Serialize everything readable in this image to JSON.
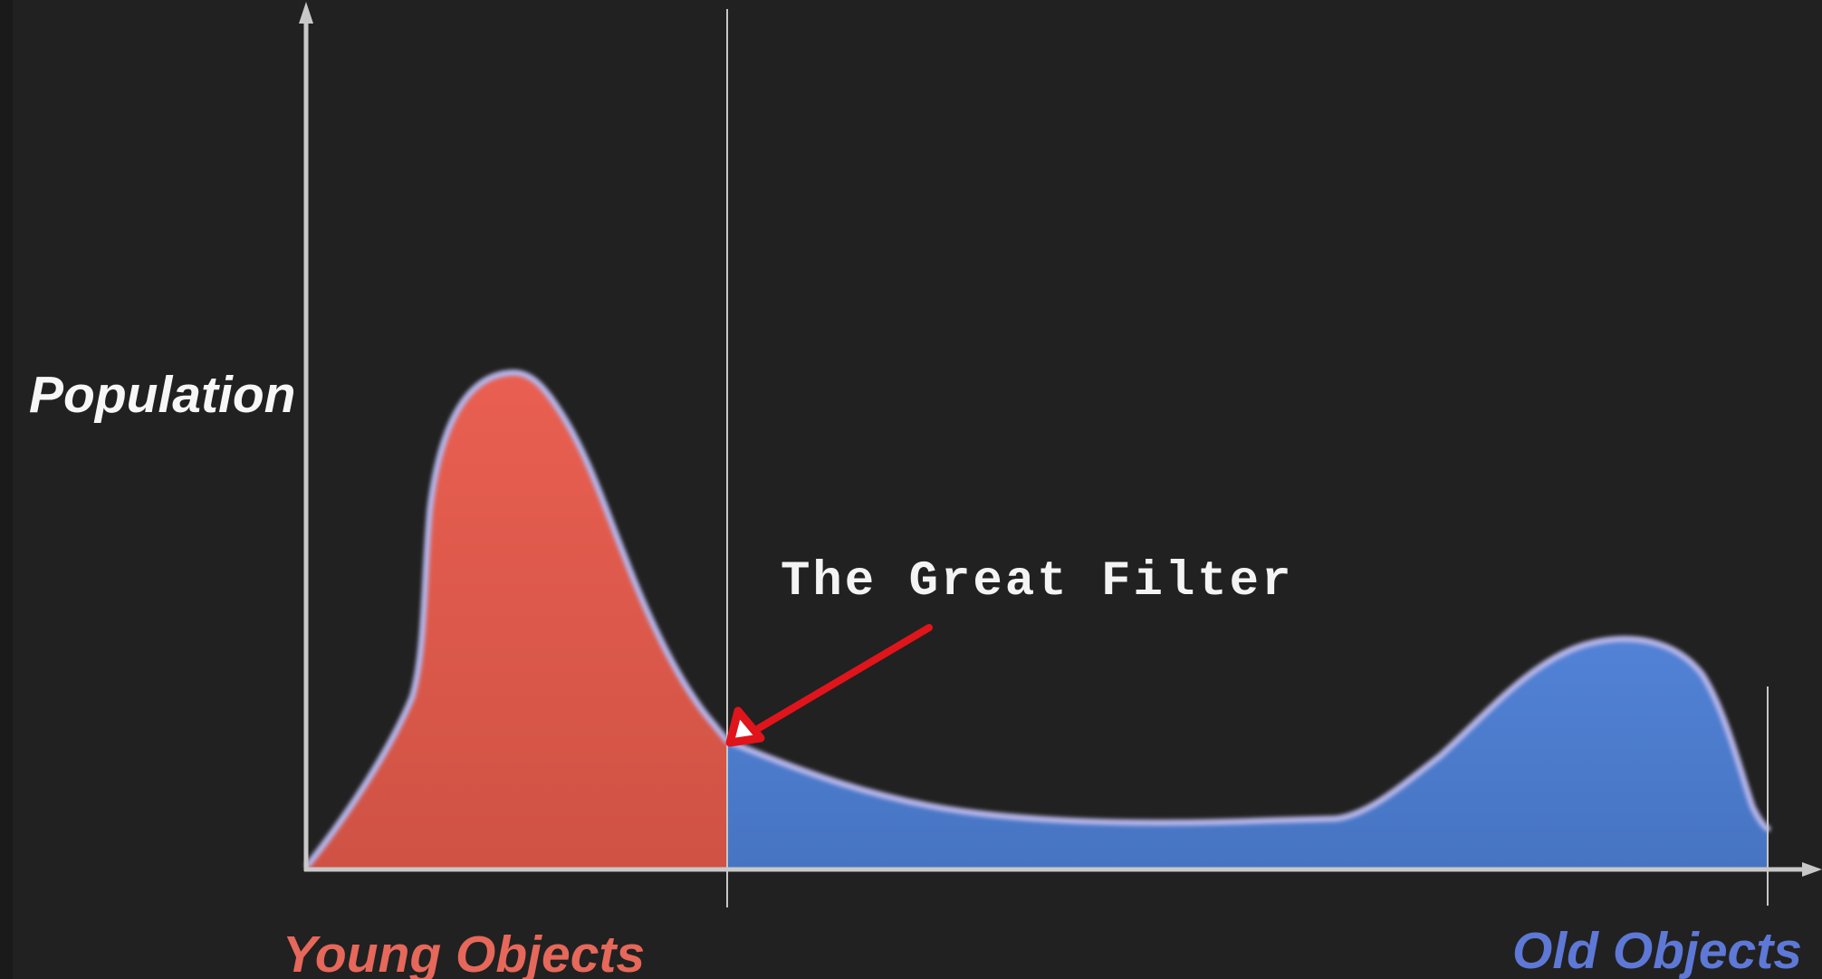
{
  "diagram": {
    "y_axis_label": "Population",
    "annotation": "The Great Filter",
    "left_group_label": "Young Objects",
    "right_group_label": "Old Objects",
    "colors": {
      "background": "#212121",
      "young_fill": "#e0584b",
      "old_fill": "#4d7bcd",
      "curve_outline": "#b3b2e6",
      "axis": "#c8c8c8",
      "arrow": "#e0141b",
      "young_label": "#e6685a",
      "old_label": "#5e78d6"
    }
  }
}
